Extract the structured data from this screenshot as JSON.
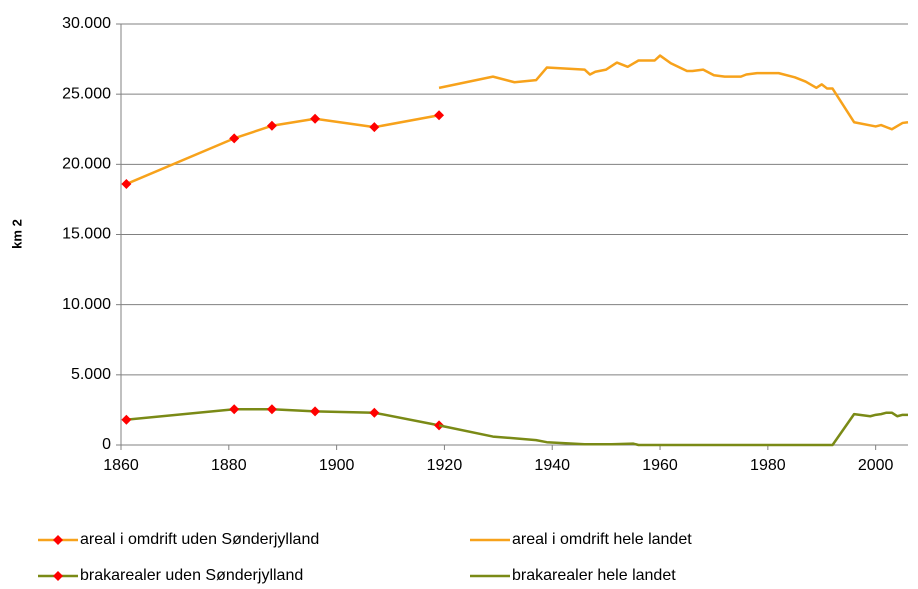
{
  "chart_data": {
    "type": "line",
    "ylabel": "km 2",
    "xlim": [
      1860,
      2006
    ],
    "xticks": [
      1860,
      1880,
      1900,
      1920,
      1940,
      1960,
      1980,
      2000
    ],
    "ylim": [
      0,
      30000
    ],
    "yticks": [
      0,
      {
        "value": 5000,
        "label": "5.000"
      },
      {
        "value": 10000,
        "label": "10.000"
      },
      {
        "value": 15000,
        "label": "15.000"
      },
      {
        "value": 20000,
        "label": "20.000"
      },
      {
        "value": 25000,
        "label": "25.000"
      },
      {
        "value": 30000,
        "label": "30.000"
      }
    ],
    "grid": true,
    "series": [
      {
        "name": "areal i omdrift uden Sønderjylland",
        "color": "#f7a21b",
        "marker": "diamond",
        "marker_color": "#ff0000",
        "x": [
          1861,
          1881,
          1888,
          1896,
          1907,
          1919
        ],
        "values": [
          18600,
          21850,
          22750,
          23250,
          22650,
          23500
        ]
      },
      {
        "name": "areal i omdrift hele landet",
        "color": "#f7a21b",
        "x": [
          1919,
          1929,
          1933,
          1937,
          1939,
          1946,
          1947,
          1948,
          1950,
          1952,
          1954,
          1956,
          1959,
          1960,
          1962,
          1965,
          1966,
          1968,
          1970,
          1972,
          1975,
          1976,
          1978,
          1982,
          1985,
          1987,
          1989,
          1990,
          1991,
          1992,
          1996,
          2000,
          2001,
          2003,
          2005,
          2006
        ],
        "values": [
          25450,
          26250,
          25850,
          26000,
          26900,
          26750,
          26400,
          26600,
          26750,
          27250,
          26950,
          27400,
          27400,
          27750,
          27200,
          26650,
          26650,
          26750,
          26350,
          26250,
          26250,
          26400,
          26500,
          26500,
          26200,
          25900,
          25450,
          25700,
          25400,
          25400,
          23000,
          22700,
          22800,
          22500,
          22950,
          23000
        ]
      },
      {
        "name": "brakarealer uden Sønderjylland",
        "color": "#7a8a16",
        "marker": "diamond",
        "marker_color": "#ff0000",
        "x": [
          1861,
          1881,
          1888,
          1896,
          1907,
          1919
        ],
        "values": [
          1800,
          2550,
          2550,
          2400,
          2300,
          1400
        ]
      },
      {
        "name": "brakarealer hele landet",
        "color": "#7a8a16",
        "x": [
          1919,
          1929,
          1937,
          1939,
          1946,
          1951,
          1955,
          1956,
          1992,
          1996,
          1999,
          2000,
          2001,
          2002,
          2003,
          2004,
          2005,
          2006
        ],
        "values": [
          1400,
          600,
          350,
          200,
          50,
          50,
          100,
          0,
          0,
          2200,
          2050,
          2150,
          2200,
          2300,
          2300,
          2050,
          2150,
          2150
        ]
      }
    ]
  }
}
